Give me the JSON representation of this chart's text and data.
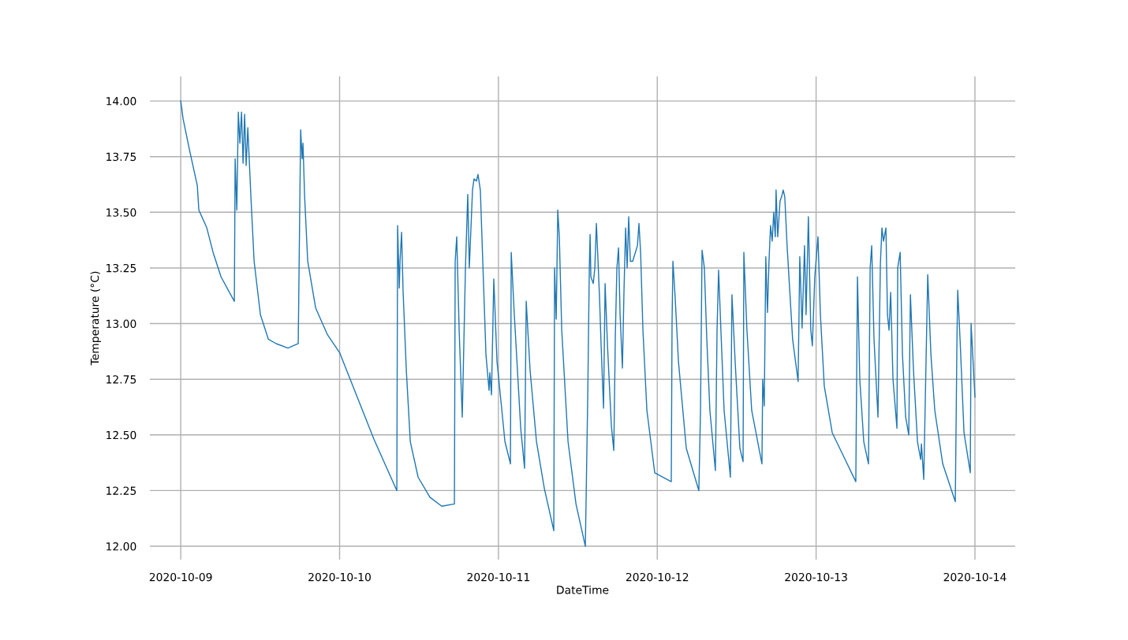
{
  "chart_data": {
    "type": "line",
    "xlabel": "DateTime",
    "ylabel": "Temperature (°C)",
    "x": [
      "2020-10-09T00:00",
      "2020-10-09T00:21",
      "2020-10-09T01:19",
      "2020-10-09T02:30",
      "2020-10-09T02:44",
      "2020-10-09T03:56",
      "2020-10-09T04:53",
      "2020-10-09T06:05",
      "2020-10-09T08:06",
      "2020-10-09T08:13",
      "2020-10-09T08:28",
      "2020-10-09T08:42",
      "2020-10-09T08:56",
      "2020-10-09T09:11",
      "2020-10-09T09:25",
      "2020-10-09T09:39",
      "2020-10-09T09:53",
      "2020-10-09T10:08",
      "2020-10-09T10:36",
      "2020-10-09T11:05",
      "2020-10-09T12:02",
      "2020-10-09T13:14",
      "2020-10-09T14:25",
      "2020-10-09T16:12",
      "2020-10-09T17:45",
      "2020-10-09T18:00",
      "2020-10-09T18:07",
      "2020-10-09T18:21",
      "2020-10-09T18:28",
      "2020-10-09T18:43",
      "2020-10-09T19:11",
      "2020-10-09T20:23",
      "2020-10-09T22:10",
      "2020-10-10T00:00",
      "2020-10-10T05:12",
      "2020-10-10T08:39",
      "2020-10-10T08:46",
      "2020-10-10T09:01",
      "2020-10-10T09:08",
      "2020-10-10T09:22",
      "2020-10-10T09:36",
      "2020-10-10T10:05",
      "2020-10-10T10:41",
      "2020-10-10T11:52",
      "2020-10-10T13:39",
      "2020-10-10T15:26",
      "2020-10-10T17:21",
      "2020-10-10T17:28",
      "2020-10-10T17:42",
      "2020-10-10T18:04",
      "2020-10-10T18:32",
      "2020-10-10T18:46",
      "2020-10-10T19:01",
      "2020-10-10T19:22",
      "2020-10-10T19:36",
      "2020-10-10T19:51",
      "2020-10-10T20:05",
      "2020-10-10T20:19",
      "2020-10-10T20:41",
      "2020-10-10T20:55",
      "2020-10-10T21:16",
      "2020-10-10T21:38",
      "2020-10-10T22:07",
      "2020-10-10T22:35",
      "2020-10-10T22:42",
      "2020-10-10T22:57",
      "2020-10-10T23:18",
      "2020-10-10T23:47",
      "2020-10-11T00:59",
      "2020-10-11T01:49",
      "2020-10-11T01:56",
      "2020-10-11T02:24",
      "2020-10-11T03:22",
      "2020-10-11T03:57",
      "2020-10-11T04:12",
      "2020-10-11T04:47",
      "2020-10-11T05:45",
      "2020-10-11T06:56",
      "2020-10-11T08:22",
      "2020-10-11T08:29",
      "2020-10-11T08:44",
      "2020-10-11T08:58",
      "2020-10-11T09:12",
      "2020-10-11T09:34",
      "2020-10-11T10:31",
      "2020-10-11T11:43",
      "2020-10-11T13:08",
      "2020-10-11T13:30",
      "2020-10-11T13:44",
      "2020-10-11T13:51",
      "2020-10-11T13:58",
      "2020-10-11T14:20",
      "2020-10-11T14:34",
      "2020-10-11T14:48",
      "2020-10-11T15:03",
      "2020-10-11T15:17",
      "2020-10-11T15:31",
      "2020-10-11T15:53",
      "2020-10-11T16:07",
      "2020-10-11T16:28",
      "2020-10-11T17:04",
      "2020-10-11T17:26",
      "2020-10-11T17:40",
      "2020-10-11T17:54",
      "2020-10-11T18:09",
      "2020-10-11T18:23",
      "2020-10-11T18:44",
      "2020-10-11T18:58",
      "2020-10-11T19:13",
      "2020-10-11T19:27",
      "2020-10-11T19:41",
      "2020-10-11T19:56",
      "2020-10-11T20:17",
      "2020-10-11T21:00",
      "2020-10-11T21:14",
      "2020-10-11T21:29",
      "2020-10-11T21:50",
      "2020-10-11T22:26",
      "2020-10-11T23:37",
      "2020-10-12T02:07",
      "2020-10-12T02:14",
      "2020-10-12T02:22",
      "2020-10-12T02:43",
      "2020-10-12T03:12",
      "2020-10-12T04:23",
      "2020-10-12T06:17",
      "2020-10-12T06:32",
      "2020-10-12T06:46",
      "2020-10-12T07:07",
      "2020-10-12T07:29",
      "2020-10-12T07:57",
      "2020-10-12T08:47",
      "2020-10-12T09:02",
      "2020-10-12T09:16",
      "2020-10-12T09:37",
      "2020-10-12T10:06",
      "2020-10-12T11:03",
      "2020-10-12T11:17",
      "2020-10-12T11:46",
      "2020-10-12T12:29",
      "2020-10-12T12:58",
      "2020-10-12T13:05",
      "2020-10-12T13:33",
      "2020-10-12T14:16",
      "2020-10-12T15:49",
      "2020-10-12T15:56",
      "2020-10-12T16:10",
      "2020-10-12T16:24",
      "2020-10-12T16:39",
      "2020-10-12T16:53",
      "2020-10-12T17:07",
      "2020-10-12T17:22",
      "2020-10-12T17:36",
      "2020-10-12T17:50",
      "2020-10-12T17:57",
      "2020-10-12T18:12",
      "2020-10-12T18:33",
      "2020-10-12T18:47",
      "2020-10-12T19:02",
      "2020-10-12T19:16",
      "2020-10-12T19:37",
      "2020-10-12T20:27",
      "2020-10-12T21:17",
      "2020-10-12T21:32",
      "2020-10-12T21:53",
      "2020-10-12T22:15",
      "2020-10-12T22:29",
      "2020-10-12T22:50",
      "2020-10-12T23:12",
      "2020-10-12T23:26",
      "2020-10-12T23:48",
      "2020-10-13T00:17",
      "2020-10-13T00:39",
      "2020-10-13T01:14",
      "2020-10-13T02:26",
      "2020-10-13T04:13",
      "2020-10-13T06:00",
      "2020-10-13T06:15",
      "2020-10-13T06:36",
      "2020-10-13T07:12",
      "2020-10-13T07:55",
      "2020-10-13T08:10",
      "2020-10-13T08:24",
      "2020-10-13T08:45",
      "2020-10-13T09:21",
      "2020-10-13T09:43",
      "2020-10-13T09:57",
      "2020-10-13T10:11",
      "2020-10-13T10:33",
      "2020-10-13T10:47",
      "2020-10-13T11:01",
      "2020-10-13T11:16",
      "2020-10-13T11:37",
      "2020-10-13T12:13",
      "2020-10-13T12:20",
      "2020-10-13T12:42",
      "2020-10-13T13:03",
      "2020-10-13T13:32",
      "2020-10-13T14:00",
      "2020-10-13T14:15",
      "2020-10-13T14:43",
      "2020-10-13T15:19",
      "2020-10-13T15:48",
      "2020-10-13T15:55",
      "2020-10-13T16:16",
      "2020-10-13T16:52",
      "2020-10-13T17:21",
      "2020-10-13T17:56",
      "2020-10-13T19:08",
      "2020-10-13T21:02",
      "2020-10-13T21:17",
      "2020-10-13T21:24",
      "2020-10-13T21:45",
      "2020-10-13T22:21",
      "2020-10-13T23:18",
      "2020-10-13T23:25",
      "2020-10-13T23:40",
      "2020-10-14T00:00"
    ],
    "series": [
      {
        "color": "#1f77b4",
        "values": [
          14.0,
          13.92,
          13.78,
          13.62,
          13.51,
          13.43,
          13.32,
          13.21,
          13.1,
          13.74,
          13.51,
          13.95,
          13.81,
          13.95,
          13.72,
          13.94,
          13.71,
          13.88,
          13.57,
          13.28,
          13.04,
          12.93,
          12.91,
          12.89,
          12.91,
          13.57,
          13.87,
          13.74,
          13.81,
          13.57,
          13.28,
          13.07,
          12.95,
          12.87,
          12.48,
          12.25,
          13.44,
          13.16,
          13.28,
          13.41,
          13.14,
          12.79,
          12.47,
          12.31,
          12.22,
          12.18,
          12.19,
          13.28,
          13.39,
          12.97,
          12.58,
          12.9,
          13.25,
          13.58,
          13.25,
          13.43,
          13.6,
          13.65,
          13.64,
          13.67,
          13.6,
          13.28,
          12.86,
          12.7,
          12.78,
          12.68,
          13.2,
          12.83,
          12.47,
          12.37,
          13.32,
          13.04,
          12.53,
          12.35,
          13.1,
          12.79,
          12.47,
          12.26,
          12.07,
          13.25,
          13.02,
          13.51,
          13.39,
          12.97,
          12.47,
          12.19,
          12.0,
          12.68,
          13.25,
          13.4,
          13.21,
          13.18,
          13.25,
          13.45,
          13.28,
          13.11,
          12.9,
          12.62,
          13.18,
          12.91,
          12.54,
          12.43,
          12.95,
          13.25,
          13.34,
          13.04,
          12.8,
          13.14,
          13.43,
          13.25,
          13.48,
          13.28,
          13.28,
          13.35,
          13.45,
          13.32,
          12.97,
          12.61,
          12.33,
          12.29,
          13.0,
          13.28,
          13.11,
          12.83,
          12.44,
          12.25,
          12.61,
          13.33,
          13.25,
          12.93,
          12.61,
          12.34,
          12.97,
          13.24,
          12.97,
          12.61,
          12.31,
          13.13,
          12.83,
          12.44,
          12.38,
          13.32,
          12.97,
          12.61,
          12.37,
          12.75,
          12.63,
          13.3,
          13.05,
          13.28,
          13.44,
          13.37,
          13.5,
          13.39,
          13.6,
          13.39,
          13.55,
          13.57,
          13.6,
          13.57,
          13.35,
          12.93,
          12.74,
          13.3,
          12.98,
          13.35,
          13.04,
          13.48,
          12.97,
          12.9,
          13.21,
          13.39,
          13.04,
          12.72,
          12.51,
          12.4,
          12.29,
          13.21,
          12.75,
          12.47,
          12.37,
          13.25,
          13.35,
          12.93,
          12.58,
          13.27,
          13.43,
          13.37,
          13.43,
          13.04,
          12.97,
          13.14,
          12.75,
          12.53,
          13.25,
          13.32,
          12.86,
          12.58,
          12.5,
          13.13,
          12.79,
          12.47,
          12.39,
          12.46,
          12.3,
          13.22,
          12.86,
          12.61,
          12.37,
          12.2,
          12.93,
          13.15,
          12.93,
          12.51,
          12.33,
          13.0,
          12.86,
          12.67
        ]
      }
    ],
    "xlim": [
      "2020-10-08T19:20",
      "2020-10-14T06:05"
    ],
    "xticks": [
      {
        "value": "2020-10-09",
        "label": "2020-10-09"
      },
      {
        "value": "2020-10-10",
        "label": "2020-10-10"
      },
      {
        "value": "2020-10-11",
        "label": "2020-10-11"
      },
      {
        "value": "2020-10-12",
        "label": "2020-10-12"
      },
      {
        "value": "2020-10-13",
        "label": "2020-10-13"
      },
      {
        "value": "2020-10-14",
        "label": "2020-10-14"
      }
    ],
    "ylim": [
      11.94,
      14.11
    ],
    "yticks": [
      {
        "value": 12,
        "label": "12.00"
      },
      {
        "value": 12.25,
        "label": "12.25"
      },
      {
        "value": 12.5,
        "label": "12.50"
      },
      {
        "value": 12.75,
        "label": "12.75"
      },
      {
        "value": 13,
        "label": "13.00"
      },
      {
        "value": 13.25,
        "label": "13.25"
      },
      {
        "value": 13.5,
        "label": "13.50"
      },
      {
        "value": 13.75,
        "label": "13.75"
      },
      {
        "value": 14,
        "label": "14.00"
      }
    ],
    "grid": true
  }
}
